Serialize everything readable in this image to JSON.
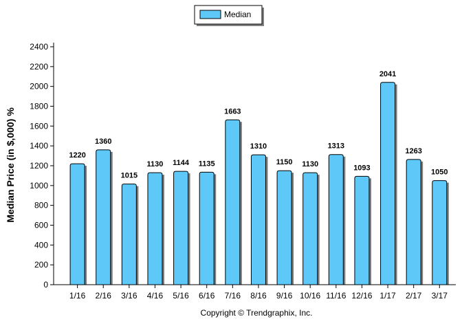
{
  "chart_data": {
    "type": "bar",
    "categories": [
      "1/16",
      "2/16",
      "3/16",
      "4/16",
      "5/16",
      "6/16",
      "7/16",
      "8/16",
      "9/16",
      "10/16",
      "11/16",
      "12/16",
      "1/17",
      "2/17",
      "3/17"
    ],
    "series": [
      {
        "name": "Median",
        "values": [
          1220,
          1360,
          1015,
          1130,
          1144,
          1135,
          1663,
          1310,
          1150,
          1130,
          1313,
          1093,
          2041,
          1263,
          1050
        ]
      }
    ],
    "ylabel": "Median Price (in $,000) %",
    "xlabel": "",
    "ylim": [
      0,
      2400
    ],
    "yticks": [
      0,
      200,
      400,
      600,
      800,
      1000,
      1200,
      1400,
      1600,
      1800,
      2000,
      2200,
      2400
    ],
    "grid": false,
    "legend_position": "top-center",
    "bar_color": "#5ec8f8",
    "bar_stroke": "#000000",
    "footer": "Copyright © Trendgraphix, Inc."
  }
}
